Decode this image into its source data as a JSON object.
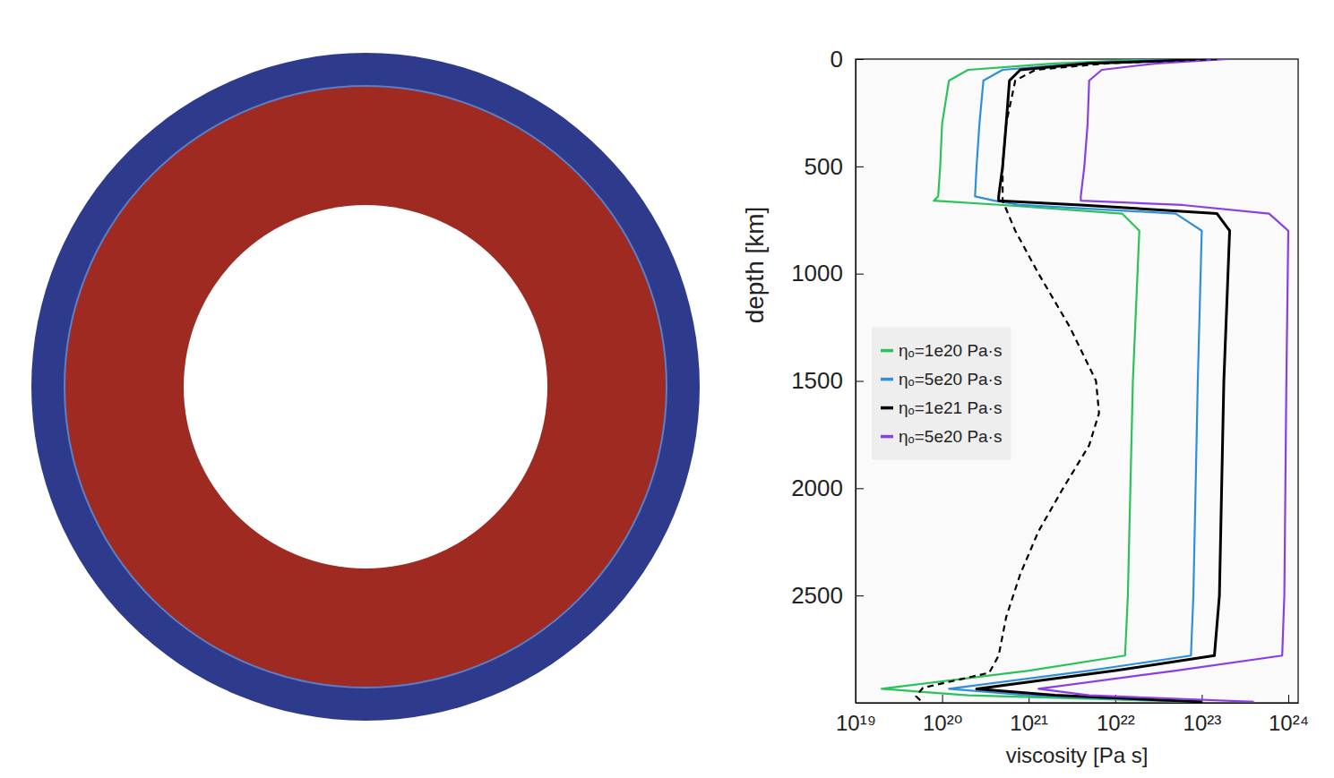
{
  "chart_data": {
    "type": "line",
    "x_label": "viscosity [Pa s]",
    "y_label": "depth [km]",
    "log": "x",
    "grid": false,
    "legend": "left",
    "xlim": [
      1e+19,
      1.3e+24
    ],
    "ylim": [
      0,
      3000
    ],
    "xticks": [
      {
        "value": 1e+19,
        "label": "10¹⁹"
      },
      {
        "value": 1e+20,
        "label": "10²⁰"
      },
      {
        "value": 1e+21,
        "label": "10²¹"
      },
      {
        "value": 1e+22,
        "label": "10²²"
      },
      {
        "value": 1e+23,
        "label": "10²³"
      },
      {
        "value": 1e+24,
        "label": "10²⁴"
      }
    ],
    "yticks": [
      0,
      500,
      1000,
      1500,
      2000,
      2500
    ],
    "series": [
      {
        "name": "ηₒ=1e20 Pa·s",
        "color": "#2bc25a",
        "line_style": "solid",
        "x": [
          3e+22,
          2e+21,
          2e+20,
          1.2e+20,
          1e+20,
          9.5e+19,
          9e+19,
          8e+19,
          5e+20,
          1.2e+22,
          1.9e+22,
          1.6e+22,
          1.4e+22,
          1.3e+22,
          1e+21,
          2e+19,
          2e+20,
          8e+22
        ],
        "values": [
          0,
          20,
          50,
          100,
          300,
          500,
          640,
          660,
          680,
          720,
          800,
          1500,
          2500,
          2780,
          2850,
          2935,
          2965,
          2995
        ]
      },
      {
        "name": "ηₒ=5e20 Pa·s",
        "color": "#2f8fd8",
        "line_style": "solid",
        "x": [
          5e+22,
          4e+21,
          5e+20,
          3e+20,
          2.7e+20,
          2.5e+20,
          2.4e+20,
          4e+20,
          8e+20,
          5e+22,
          1e+23,
          9e+22,
          8e+22,
          7.5e+22,
          5e+21,
          1.2e+20,
          1e+21,
          9e+22
        ],
        "values": [
          0,
          20,
          50,
          100,
          300,
          500,
          640,
          660,
          680,
          720,
          800,
          1500,
          2500,
          2780,
          2850,
          2935,
          2965,
          2995
        ]
      },
      {
        "name": "ηₒ=1e21 Pa·s",
        "color": "#000000",
        "line_style": "solid",
        "x": [
          1.5e+23,
          5e+21,
          8e+20,
          6e+20,
          5.5e+20,
          5e+20,
          4.5e+20,
          4.5e+20,
          4e+21,
          1.5e+23,
          2.1e+23,
          1.8e+23,
          1.6e+23,
          1.4e+23,
          1e+22,
          2.5e+20,
          2e+21,
          1e+23
        ],
        "values": [
          0,
          20,
          50,
          100,
          300,
          500,
          640,
          660,
          680,
          720,
          800,
          1500,
          2500,
          2780,
          2850,
          2935,
          2965,
          2995
        ]
      },
      {
        "name": "ηₒ=5e20 Pa·s",
        "color": "#8a3fe0",
        "line_style": "solid",
        "x": [
          2e+23,
          3e+22,
          7e+21,
          5e+21,
          4.8e+21,
          4.4e+21,
          4e+21,
          4e+21,
          6e+22,
          6e+23,
          1e+24,
          9.5e+23,
          9e+23,
          8.5e+23,
          5e+22,
          1.3e+21,
          5e+21,
          4e+23
        ],
        "values": [
          0,
          20,
          50,
          100,
          300,
          500,
          640,
          660,
          680,
          720,
          800,
          1500,
          2500,
          2780,
          2850,
          2935,
          2965,
          2995
        ]
      },
      {
        "color": "#000000",
        "line_style": "dashed",
        "x": [
          1.5e+23,
          8e+21,
          1.2e+21,
          7e+20,
          5.5e+20,
          5e+20,
          5e+20,
          7e+20,
          1.3e+21,
          3e+21,
          6e+21,
          6.5e+21,
          5e+21,
          2.5e+21,
          1.3e+21,
          8e+20,
          5.5e+20,
          4.5e+20,
          3.5e+20,
          6e+19,
          5e+19,
          6e+19
        ],
        "values": [
          0,
          20,
          50,
          100,
          300,
          500,
          660,
          800,
          1000,
          1250,
          1500,
          1650,
          1800,
          2000,
          2200,
          2400,
          2600,
          2780,
          2860,
          2930,
          2970,
          3000
        ]
      }
    ]
  }
}
